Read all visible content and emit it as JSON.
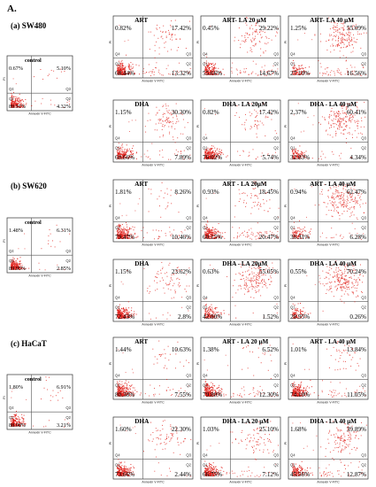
{
  "figure_label": "A.",
  "sections": [
    {
      "label": "(a) SW480"
    },
    {
      "label": "(b) SW620"
    },
    {
      "label": "(c) HaCaT"
    }
  ],
  "axis_text": {
    "x": "Annexin V-FITC",
    "y": "PI"
  },
  "quadrant_labels": [
    "Q1",
    "Q2",
    "Q3",
    "Q4"
  ],
  "chart_data": [
    {
      "type": "scatter",
      "section": "(a) SW480",
      "title": "control",
      "quadrants": {
        "Q1": "0.67%",
        "Q2": "5.10%",
        "Q3": "4.32%",
        "Q4": "89.91%"
      }
    },
    {
      "type": "scatter",
      "section": "(a) SW480",
      "title": "ART",
      "quadrants": {
        "Q1": "0.82%",
        "Q2": "17.42%",
        "Q3": "13.32%",
        "Q4": "68.44%"
      }
    },
    {
      "type": "scatter",
      "section": "(a) SW480",
      "title": "ART- LA 20 μM",
      "quadrants": {
        "Q1": "0.45%",
        "Q2": "29.22%",
        "Q3": "14.67%",
        "Q4": "55.66%"
      }
    },
    {
      "type": "scatter",
      "section": "(a) SW480",
      "title": "ART- LA 40 μM",
      "quadrants": {
        "Q1": "1.25%",
        "Q2": "55.09%",
        "Q3": "16.56%",
        "Q4": "27.10%"
      }
    },
    {
      "type": "scatter",
      "section": "(a) SW480",
      "title": "DHA",
      "quadrants": {
        "Q1": "1.15%",
        "Q2": "30.30%",
        "Q3": "7.89%",
        "Q4": "60.66%"
      }
    },
    {
      "type": "scatter",
      "section": "(a) SW480",
      "title": "DHA - LA 20μM",
      "quadrants": {
        "Q1": "0.82%",
        "Q2": "17.42%",
        "Q3": "5.74%",
        "Q4": "76.02%"
      }
    },
    {
      "type": "scatter",
      "section": "(a) SW480",
      "title": "DHA - LA 40 μM",
      "quadrants": {
        "Q1": "2.37%",
        "Q2": "60.41%",
        "Q3": "4.34%",
        "Q4": "32.83%"
      }
    },
    {
      "type": "scatter",
      "section": "(b) SW620",
      "title": "control",
      "quadrants": {
        "Q1": "1.48%",
        "Q2": "6.31%",
        "Q3": "2.85%",
        "Q4": "89.95%"
      }
    },
    {
      "type": "scatter",
      "section": "(b) SW620",
      "title": "ART",
      "quadrants": {
        "Q1": "1.81%",
        "Q2": "8.26%",
        "Q3": "10.46%",
        "Q4": "79.47%"
      }
    },
    {
      "type": "scatter",
      "section": "(b) SW620",
      "title": "ART - LA 20μM",
      "quadrants": {
        "Q1": "0.93%",
        "Q2": "18.45%",
        "Q3": "20.47%",
        "Q4": "60.15%"
      }
    },
    {
      "type": "scatter",
      "section": "(b) SW620",
      "title": "ART - LA 40 μM",
      "quadrants": {
        "Q1": "0.94%",
        "Q2": "62.47%",
        "Q3": "6.28%",
        "Q4": "30.31%"
      }
    },
    {
      "type": "scatter",
      "section": "(b) SW620",
      "title": "DHA",
      "quadrants": {
        "Q1": "1.15%",
        "Q2": "23.62%",
        "Q3": "2.8%",
        "Q4": "72.43%"
      }
    },
    {
      "type": "scatter",
      "section": "(b) SW620",
      "title": "DHA - LA 20μM",
      "quadrants": {
        "Q1": "0.63%",
        "Q2": "55.05%",
        "Q3": "1.52%",
        "Q4": "42.80%"
      }
    },
    {
      "type": "scatter",
      "section": "(b) SW620",
      "title": "DHA - LA 40 μM",
      "quadrants": {
        "Q1": "0.55%",
        "Q2": "70.24%",
        "Q3": "0.26%",
        "Q4": "28.95%"
      }
    },
    {
      "type": "scatter",
      "section": "(c) HaCaT",
      "title": "control",
      "quadrants": {
        "Q1": "1.80%",
        "Q2": "6.91%",
        "Q3": "3.21%",
        "Q4": "88.08%"
      }
    },
    {
      "type": "scatter",
      "section": "(c) HaCaT",
      "title": "ART",
      "quadrants": {
        "Q1": "1.44%",
        "Q2": "10.63%",
        "Q3": "7.55%",
        "Q4": "80.38%"
      }
    },
    {
      "type": "scatter",
      "section": "(c) HaCaT",
      "title": "ART - LA 20 μM",
      "quadrants": {
        "Q1": "1.38%",
        "Q2": "6.52%",
        "Q3": "12.30%",
        "Q4": "79.80%"
      }
    },
    {
      "type": "scatter",
      "section": "(c) HaCaT",
      "title": "ART - LA 40 μM",
      "quadrants": {
        "Q1": "1.01%",
        "Q2": "13.84%",
        "Q3": "11.05%",
        "Q4": "74.10%"
      }
    },
    {
      "type": "scatter",
      "section": "(c) HaCaT",
      "title": "DHA",
      "quadrants": {
        "Q1": "1.60%",
        "Q2": "22.30%",
        "Q3": "2.44%",
        "Q4": "73.66%"
      }
    },
    {
      "type": "scatter",
      "section": "(c) HaCaT",
      "title": "DHA - LA 20 μM",
      "quadrants": {
        "Q1": "1.03%",
        "Q2": "25.10%",
        "Q3": "7.12%",
        "Q4": "66.75%"
      }
    },
    {
      "type": "scatter",
      "section": "(c) HaCaT",
      "title": "DHA - LA 40 μM",
      "quadrants": {
        "Q1": "1.68%",
        "Q2": "39.89%",
        "Q3": "12.87%",
        "Q4": "45.56%"
      }
    }
  ]
}
